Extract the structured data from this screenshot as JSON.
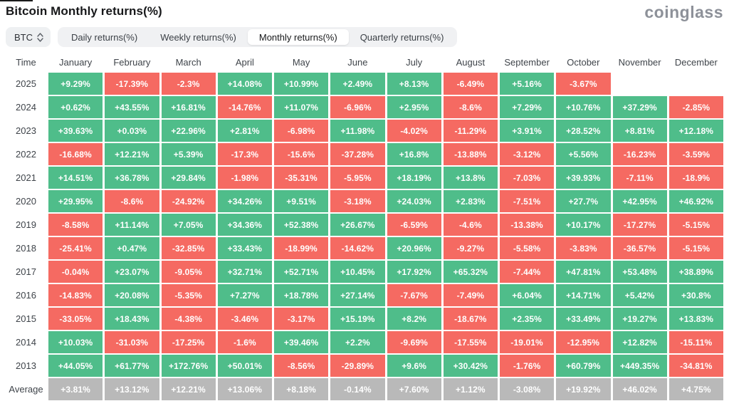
{
  "header": {
    "title": "Bitcoin Monthly returns(%)",
    "logo_text": "coinglass"
  },
  "controls": {
    "coin_selector": {
      "value": "BTC"
    },
    "tabs": [
      {
        "label": "Daily returns(%)",
        "active": false
      },
      {
        "label": "Weekly returns(%)",
        "active": false
      },
      {
        "label": "Monthly returns(%)",
        "active": true
      },
      {
        "label": "Quarterly returns(%)",
        "active": false
      }
    ]
  },
  "chart_data": {
    "type": "heatmap",
    "title": "Bitcoin Monthly returns(%)",
    "columns": [
      "Time",
      "January",
      "February",
      "March",
      "April",
      "May",
      "June",
      "July",
      "August",
      "September",
      "October",
      "November",
      "December"
    ],
    "rows": [
      {
        "label": "2025",
        "values": [
          "+9.29%",
          "-17.39%",
          "-2.3%",
          "+14.08%",
          "+10.99%",
          "+2.49%",
          "+8.13%",
          "-6.49%",
          "+5.16%",
          "-3.67%",
          null,
          null
        ]
      },
      {
        "label": "2024",
        "values": [
          "+0.62%",
          "+43.55%",
          "+16.81%",
          "-14.76%",
          "+11.07%",
          "-6.96%",
          "+2.95%",
          "-8.6%",
          "+7.29%",
          "+10.76%",
          "+37.29%",
          "-2.85%"
        ]
      },
      {
        "label": "2023",
        "values": [
          "+39.63%",
          "+0.03%",
          "+22.96%",
          "+2.81%",
          "-6.98%",
          "+11.98%",
          "-4.02%",
          "-11.29%",
          "+3.91%",
          "+28.52%",
          "+8.81%",
          "+12.18%"
        ]
      },
      {
        "label": "2022",
        "values": [
          "-16.68%",
          "+12.21%",
          "+5.39%",
          "-17.3%",
          "-15.6%",
          "-37.28%",
          "+16.8%",
          "-13.88%",
          "-3.12%",
          "+5.56%",
          "-16.23%",
          "-3.59%"
        ]
      },
      {
        "label": "2021",
        "values": [
          "+14.51%",
          "+36.78%",
          "+29.84%",
          "-1.98%",
          "-35.31%",
          "-5.95%",
          "+18.19%",
          "+13.8%",
          "-7.03%",
          "+39.93%",
          "-7.11%",
          "-18.9%"
        ]
      },
      {
        "label": "2020",
        "values": [
          "+29.95%",
          "-8.6%",
          "-24.92%",
          "+34.26%",
          "+9.51%",
          "-3.18%",
          "+24.03%",
          "+2.83%",
          "-7.51%",
          "+27.7%",
          "+42.95%",
          "+46.92%"
        ]
      },
      {
        "label": "2019",
        "values": [
          "-8.58%",
          "+11.14%",
          "+7.05%",
          "+34.36%",
          "+52.38%",
          "+26.67%",
          "-6.59%",
          "-4.6%",
          "-13.38%",
          "+10.17%",
          "-17.27%",
          "-5.15%"
        ]
      },
      {
        "label": "2018",
        "values": [
          "-25.41%",
          "+0.47%",
          "-32.85%",
          "+33.43%",
          "-18.99%",
          "-14.62%",
          "+20.96%",
          "-9.27%",
          "-5.58%",
          "-3.83%",
          "-36.57%",
          "-5.15%"
        ]
      },
      {
        "label": "2017",
        "values": [
          "-0.04%",
          "+23.07%",
          "-9.05%",
          "+32.71%",
          "+52.71%",
          "+10.45%",
          "+17.92%",
          "+65.32%",
          "-7.44%",
          "+47.81%",
          "+53.48%",
          "+38.89%"
        ]
      },
      {
        "label": "2016",
        "values": [
          "-14.83%",
          "+20.08%",
          "-5.35%",
          "+7.27%",
          "+18.78%",
          "+27.14%",
          "-7.67%",
          "-7.49%",
          "+6.04%",
          "+14.71%",
          "+5.42%",
          "+30.8%"
        ]
      },
      {
        "label": "2015",
        "values": [
          "-33.05%",
          "+18.43%",
          "-4.38%",
          "-3.46%",
          "-3.17%",
          "+15.19%",
          "+8.2%",
          "-18.67%",
          "+2.35%",
          "+33.49%",
          "+19.27%",
          "+13.83%"
        ]
      },
      {
        "label": "2014",
        "values": [
          "+10.03%",
          "-31.03%",
          "-17.25%",
          "-1.6%",
          "+39.46%",
          "+2.2%",
          "-9.69%",
          "-17.55%",
          "-19.01%",
          "-12.95%",
          "+12.82%",
          "-15.11%"
        ]
      },
      {
        "label": "2013",
        "values": [
          "+44.05%",
          "+61.77%",
          "+172.76%",
          "+50.01%",
          "-8.56%",
          "-29.89%",
          "+9.6%",
          "+30.42%",
          "-1.76%",
          "+60.79%",
          "+449.35%",
          "-34.81%"
        ]
      },
      {
        "label": "Average",
        "is_average": true,
        "values": [
          "+3.81%",
          "+13.12%",
          "+12.21%",
          "+13.06%",
          "+8.18%",
          "-0.14%",
          "+7.60%",
          "+1.12%",
          "-3.08%",
          "+19.92%",
          "+46.02%",
          "+4.75%"
        ]
      }
    ],
    "colors": {
      "positive": "#4fbd8a",
      "negative": "#f56a62",
      "average_bg": "#b9b9b9",
      "cell_text": "#ffffff"
    },
    "legend": "green = positive monthly return, red = negative monthly return, gray row = column average"
  }
}
